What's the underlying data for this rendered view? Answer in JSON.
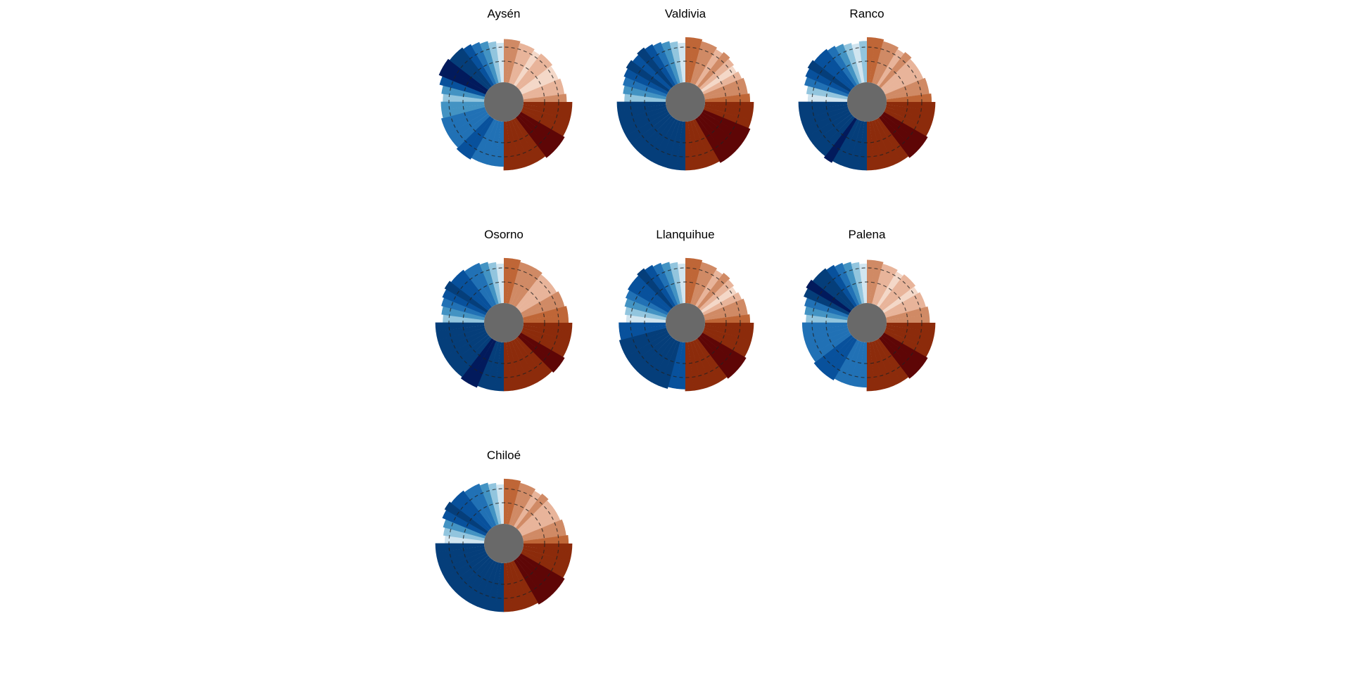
{
  "figure": {
    "background": "#ffffff",
    "center_color": "#696969"
  },
  "palette": {
    "blues": [
      "#d1e5f0",
      "#92c5de",
      "#4393c3",
      "#2171b5",
      "#08519c",
      "#053e7a",
      "#021a5c"
    ],
    "oranges": [
      "#f4d8c8",
      "#e8b49a",
      "#d08a65",
      "#bf6637",
      "#a84320",
      "#8c2b0b",
      "#5e0606"
    ]
  },
  "chart_data": [
    {
      "type": "radial-bar",
      "title": "Aysén",
      "quadrants": [
        {
          "name": "upper-left",
          "values": [
            1,
            2,
            4,
            6,
            6,
            5,
            5,
            4,
            3,
            2,
            1,
            0
          ]
        },
        {
          "name": "upper-right",
          "values": [
            2,
            2,
            1,
            1,
            0,
            1,
            1,
            0,
            0,
            1,
            1,
            2
          ]
        },
        {
          "name": "lower-right",
          "values": [
            5,
            5,
            5,
            5,
            6,
            6,
            6,
            5,
            5,
            5,
            5,
            5
          ]
        },
        {
          "name": "lower-left",
          "values": [
            3,
            3,
            3,
            3,
            4,
            4,
            3,
            3,
            3,
            3,
            2,
            2
          ]
        }
      ]
    },
    {
      "type": "radial-bar",
      "title": "Valdivia",
      "quadrants": [
        {
          "name": "upper-left",
          "values": [
            1,
            2,
            3,
            4,
            5,
            4,
            5,
            4,
            3,
            2,
            1,
            0
          ]
        },
        {
          "name": "upper-right",
          "values": [
            3,
            3,
            2,
            2,
            1,
            2,
            1,
            0,
            1,
            2,
            2,
            3
          ]
        },
        {
          "name": "lower-right",
          "values": [
            5,
            5,
            5,
            6,
            6,
            6,
            6,
            6,
            5,
            5,
            5,
            5
          ]
        },
        {
          "name": "lower-left",
          "values": [
            5,
            5,
            5,
            5,
            5,
            5,
            5,
            5,
            5,
            5,
            5,
            5
          ]
        }
      ]
    },
    {
      "type": "radial-bar",
      "title": "Ranco",
      "quadrants": [
        {
          "name": "upper-left",
          "values": [
            0,
            1,
            3,
            4,
            5,
            4,
            4,
            3,
            2,
            1,
            0,
            1
          ]
        },
        {
          "name": "upper-right",
          "values": [
            3,
            3,
            2,
            2,
            1,
            2,
            1,
            1,
            1,
            2,
            2,
            3
          ]
        },
        {
          "name": "lower-right",
          "values": [
            5,
            5,
            5,
            5,
            6,
            6,
            6,
            5,
            5,
            5,
            5,
            5
          ]
        },
        {
          "name": "lower-left",
          "values": [
            5,
            5,
            5,
            5,
            6,
            5,
            5,
            5,
            5,
            5,
            5,
            5
          ]
        }
      ]
    },
    {
      "type": "radial-bar",
      "title": "Osorno",
      "quadrants": [
        {
          "name": "upper-left",
          "values": [
            1,
            2,
            3,
            4,
            5,
            4,
            4,
            3,
            3,
            2,
            1,
            0
          ]
        },
        {
          "name": "upper-right",
          "values": [
            3,
            3,
            2,
            2,
            2,
            1,
            1,
            1,
            2,
            2,
            3,
            3
          ]
        },
        {
          "name": "lower-right",
          "values": [
            5,
            5,
            5,
            5,
            6,
            6,
            5,
            5,
            5,
            5,
            5,
            5
          ]
        },
        {
          "name": "lower-left",
          "values": [
            5,
            5,
            5,
            6,
            6,
            5,
            5,
            5,
            5,
            5,
            5,
            5
          ]
        }
      ]
    },
    {
      "type": "radial-bar",
      "title": "Llanquihue",
      "quadrants": [
        {
          "name": "upper-left",
          "values": [
            0,
            1,
            2,
            3,
            4,
            4,
            5,
            4,
            3,
            2,
            1,
            0
          ]
        },
        {
          "name": "upper-right",
          "values": [
            3,
            3,
            2,
            2,
            1,
            2,
            1,
            0,
            1,
            2,
            2,
            3
          ]
        },
        {
          "name": "lower-right",
          "values": [
            5,
            5,
            5,
            5,
            6,
            6,
            6,
            5,
            5,
            5,
            5,
            5
          ]
        },
        {
          "name": "lower-left",
          "values": [
            4,
            4,
            5,
            5,
            5,
            5,
            5,
            5,
            5,
            5,
            4,
            4
          ]
        }
      ]
    },
    {
      "type": "radial-bar",
      "title": "Palena",
      "quadrants": [
        {
          "name": "upper-left",
          "values": [
            1,
            2,
            3,
            5,
            6,
            5,
            5,
            4,
            3,
            2,
            1,
            0
          ]
        },
        {
          "name": "upper-right",
          "values": [
            2,
            2,
            1,
            1,
            0,
            1,
            1,
            0,
            1,
            1,
            2,
            2
          ]
        },
        {
          "name": "lower-right",
          "values": [
            5,
            5,
            5,
            5,
            6,
            6,
            6,
            5,
            5,
            5,
            5,
            5
          ]
        },
        {
          "name": "lower-left",
          "values": [
            3,
            3,
            3,
            3,
            4,
            4,
            4,
            3,
            3,
            3,
            3,
            3
          ]
        }
      ]
    },
    {
      "type": "radial-bar",
      "title": "Chiloé",
      "quadrants": [
        {
          "name": "upper-left",
          "values": [
            0,
            1,
            2,
            4,
            5,
            4,
            4,
            3,
            3,
            2,
            1,
            0
          ]
        },
        {
          "name": "upper-right",
          "values": [
            3,
            3,
            2,
            2,
            1,
            2,
            1,
            1,
            1,
            2,
            2,
            3
          ]
        },
        {
          "name": "lower-right",
          "values": [
            5,
            5,
            5,
            5,
            6,
            6,
            6,
            6,
            5,
            5,
            5,
            5
          ]
        },
        {
          "name": "lower-left",
          "values": [
            5,
            5,
            5,
            5,
            5,
            5,
            5,
            5,
            5,
            5,
            5,
            5
          ]
        }
      ]
    }
  ]
}
